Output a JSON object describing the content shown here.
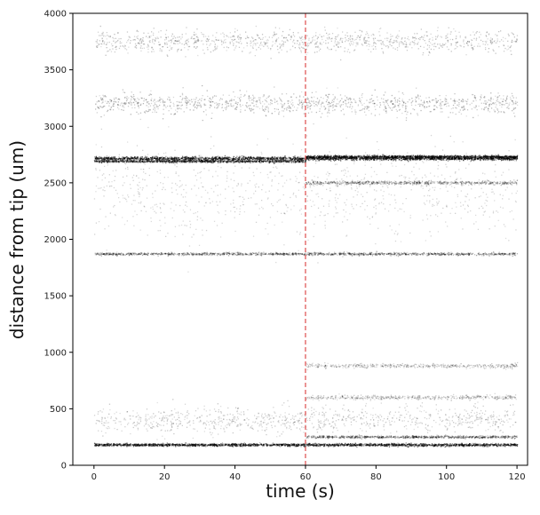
{
  "chart_data": {
    "type": "scatter",
    "title": "",
    "xlabel": "time (s)",
    "ylabel": "distance from tip (um)",
    "xlim": [
      -6,
      123
    ],
    "ylim": [
      0,
      4000
    ],
    "x_ticks": [
      0,
      20,
      40,
      60,
      80,
      100,
      120
    ],
    "y_ticks": [
      0,
      500,
      1000,
      1500,
      2000,
      2500,
      3000,
      3500,
      4000
    ],
    "grid": false,
    "legend": "none",
    "marker_color": "#000000",
    "vline": {
      "x": 60,
      "color": "#e05a5a",
      "style": "dashed"
    },
    "series": [
      {
        "bands": [
          {
            "x": [
              0,
              120
            ],
            "y": 2715,
            "intensity": 0.85,
            "spread": 8
          },
          {
            "x": [
              0,
              60
            ],
            "y": 2690,
            "intensity": 0.7,
            "spread": 6
          },
          {
            "x": [
              60,
              120
            ],
            "y": 2730,
            "intensity": 0.85,
            "spread": 6
          },
          {
            "x": [
              0,
              120
            ],
            "y": 1870,
            "intensity": 0.35,
            "spread": 6
          },
          {
            "x": [
              0,
              120
            ],
            "y": 180,
            "intensity": 0.8,
            "spread": 6
          },
          {
            "x": [
              60,
              120
            ],
            "y": 250,
            "intensity": 0.4,
            "spread": 6
          },
          {
            "x": [
              60,
              120
            ],
            "y": 2500,
            "intensity": 0.3,
            "spread": 8
          },
          {
            "x": [
              0,
              120
            ],
            "y": 3200,
            "intensity": 0.25,
            "spread": 45
          },
          {
            "x": [
              0,
              120
            ],
            "y": 3750,
            "intensity": 0.2,
            "spread": 50
          },
          {
            "x": [
              60,
              120
            ],
            "y": 880,
            "intensity": 0.15,
            "spread": 10
          },
          {
            "x": [
              60,
              120
            ],
            "y": 600,
            "intensity": 0.15,
            "spread": 10
          },
          {
            "x": [
              0,
              120
            ],
            "y": 400,
            "intensity": 0.15,
            "spread": 60
          },
          {
            "x": [
              0,
              120
            ],
            "y": 2400,
            "intensity": 0.1,
            "spread": 200
          }
        ]
      }
    ]
  }
}
